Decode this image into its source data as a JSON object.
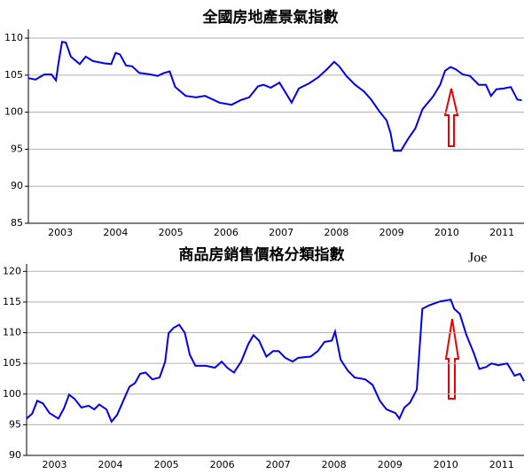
{
  "chart_data": [
    {
      "type": "line",
      "title": "全國房地產景氣指數",
      "x": [
        2002.92,
        2003.05,
        2003.21,
        2003.34,
        2003.42,
        2003.47,
        2003.53,
        2003.6,
        2003.69,
        2003.85,
        2003.96,
        2004.09,
        2004.3,
        2004.42,
        2004.5,
        2004.58,
        2004.69,
        2004.8,
        2004.93,
        2005.13,
        2005.26,
        2005.38,
        2005.48,
        2005.58,
        2005.77,
        2005.96,
        2006.12,
        2006.38,
        2006.6,
        2006.76,
        2006.92,
        2007.08,
        2007.18,
        2007.31,
        2007.47,
        2007.69,
        2007.82,
        2008.01,
        2008.17,
        2008.33,
        2008.46,
        2008.55,
        2008.68,
        2008.84,
        2009.0,
        2009.13,
        2009.28,
        2009.41,
        2009.48,
        2009.54,
        2009.67,
        2009.8,
        2009.93,
        2010.06,
        2010.25,
        2010.38,
        2010.47,
        2010.57,
        2010.66,
        2010.79,
        2010.92,
        2011.08,
        2011.21,
        2011.3,
        2011.4,
        2011.53,
        2011.66,
        2011.78,
        2011.86
      ],
      "values": [
        104.6,
        104.4,
        105.1,
        105.1,
        104.3,
        106.8,
        109.5,
        109.4,
        107.5,
        106.5,
        107.5,
        106.9,
        106.6,
        106.5,
        108,
        107.8,
        106.3,
        106.2,
        105.3,
        105.1,
        104.9,
        105.3,
        105.5,
        103.4,
        102.2,
        102,
        102.2,
        101.3,
        101,
        101.6,
        102,
        103.5,
        103.7,
        103.3,
        104,
        101.3,
        103.2,
        103.9,
        104.7,
        105.8,
        106.8,
        106.2,
        104.9,
        103.7,
        102.8,
        101.7,
        100.1,
        98.9,
        97.2,
        94.8,
        94.8,
        96.4,
        97.8,
        100.4,
        102.1,
        103.7,
        105.6,
        106.1,
        105.8,
        105.1,
        104.9,
        103.7,
        103.7,
        102.2,
        103.1,
        103.2,
        103.4,
        101.7,
        101.6
      ],
      "color": "#0000ee",
      "xlim": [
        2002.92,
        2011.9
      ],
      "ylim": [
        85,
        111.2
      ],
      "xticks": [
        {
          "value": 2003.5,
          "label": "2003"
        },
        {
          "value": 2004.5,
          "label": "2004"
        },
        {
          "value": 2005.5,
          "label": "2005"
        },
        {
          "value": 2006.5,
          "label": "2006"
        },
        {
          "value": 2007.5,
          "label": "2007"
        },
        {
          "value": 2008.5,
          "label": "2008"
        },
        {
          "value": 2009.5,
          "label": "2009"
        },
        {
          "value": 2010.5,
          "label": "2010"
        },
        {
          "value": 2011.5,
          "label": "2011"
        }
      ],
      "yticks": [
        85,
        90,
        95,
        100,
        105,
        110
      ],
      "grid": true
    },
    {
      "type": "line",
      "title": "商品房銷售價格分類指數",
      "annotation": "Joe",
      "x": [
        2003.0,
        2003.1,
        2003.19,
        2003.29,
        2003.41,
        2003.57,
        2003.67,
        2003.76,
        2003.86,
        2003.98,
        2004.11,
        2004.21,
        2004.3,
        2004.43,
        2004.52,
        2004.62,
        2004.71,
        2004.84,
        2004.94,
        2005.03,
        2005.13,
        2005.25,
        2005.38,
        2005.48,
        2005.54,
        2005.63,
        2005.73,
        2005.83,
        2005.92,
        2006.02,
        2006.21,
        2006.37,
        2006.49,
        2006.59,
        2006.71,
        2006.84,
        2006.97,
        2007.06,
        2007.16,
        2007.29,
        2007.41,
        2007.51,
        2007.63,
        2007.76,
        2007.86,
        2008.08,
        2008.21,
        2008.33,
        2008.46,
        2008.52,
        2008.62,
        2008.75,
        2008.87,
        2009.06,
        2009.19,
        2009.32,
        2009.44,
        2009.6,
        2009.67,
        2009.76,
        2009.86,
        2009.98,
        2010.08,
        2010.21,
        2010.4,
        2010.59,
        2010.65,
        2010.75,
        2010.87,
        2011.0,
        2011.1,
        2011.22,
        2011.32,
        2011.44,
        2011.6,
        2011.73,
        2011.83,
        2011.9
      ],
      "values": [
        96,
        96.8,
        98.9,
        98.5,
        96.9,
        96,
        97.7,
        99.9,
        99.2,
        97.8,
        98.1,
        97.5,
        98.3,
        97.5,
        95.5,
        96.6,
        98.5,
        101.2,
        101.8,
        103.3,
        103.5,
        102.4,
        102.7,
        105.3,
        109.9,
        110.8,
        111.3,
        110,
        106.4,
        104.6,
        104.6,
        104.3,
        105.3,
        104.3,
        103.5,
        105.3,
        108.2,
        109.6,
        108.7,
        106.1,
        107,
        107,
        105.9,
        105.3,
        105.9,
        106.1,
        107,
        108.5,
        108.7,
        110.2,
        105.6,
        103.8,
        102.7,
        102.4,
        101.5,
        98.9,
        97.5,
        96.9,
        96,
        97.8,
        98.6,
        100.7,
        113.9,
        114.5,
        115.1,
        115.4,
        113.9,
        113.1,
        109.6,
        106.7,
        104.1,
        104.4,
        105,
        104.7,
        105,
        103,
        103.3,
        102.1
      ],
      "color": "#0000ee",
      "xlim": [
        2003.0,
        2011.9
      ],
      "ylim": [
        90,
        121.2
      ],
      "xticks": [
        {
          "value": 2003.5,
          "label": "2003"
        },
        {
          "value": 2004.5,
          "label": "2004"
        },
        {
          "value": 2005.5,
          "label": "2005"
        },
        {
          "value": 2006.5,
          "label": "2006"
        },
        {
          "value": 2007.5,
          "label": "2007"
        },
        {
          "value": 2008.5,
          "label": "2008"
        },
        {
          "value": 2009.5,
          "label": "2009"
        },
        {
          "value": 2010.5,
          "label": "2010"
        },
        {
          "value": 2011.5,
          "label": "2011"
        }
      ],
      "yticks": [
        90,
        95,
        100,
        105,
        110,
        115,
        120
      ],
      "grid": true
    }
  ]
}
